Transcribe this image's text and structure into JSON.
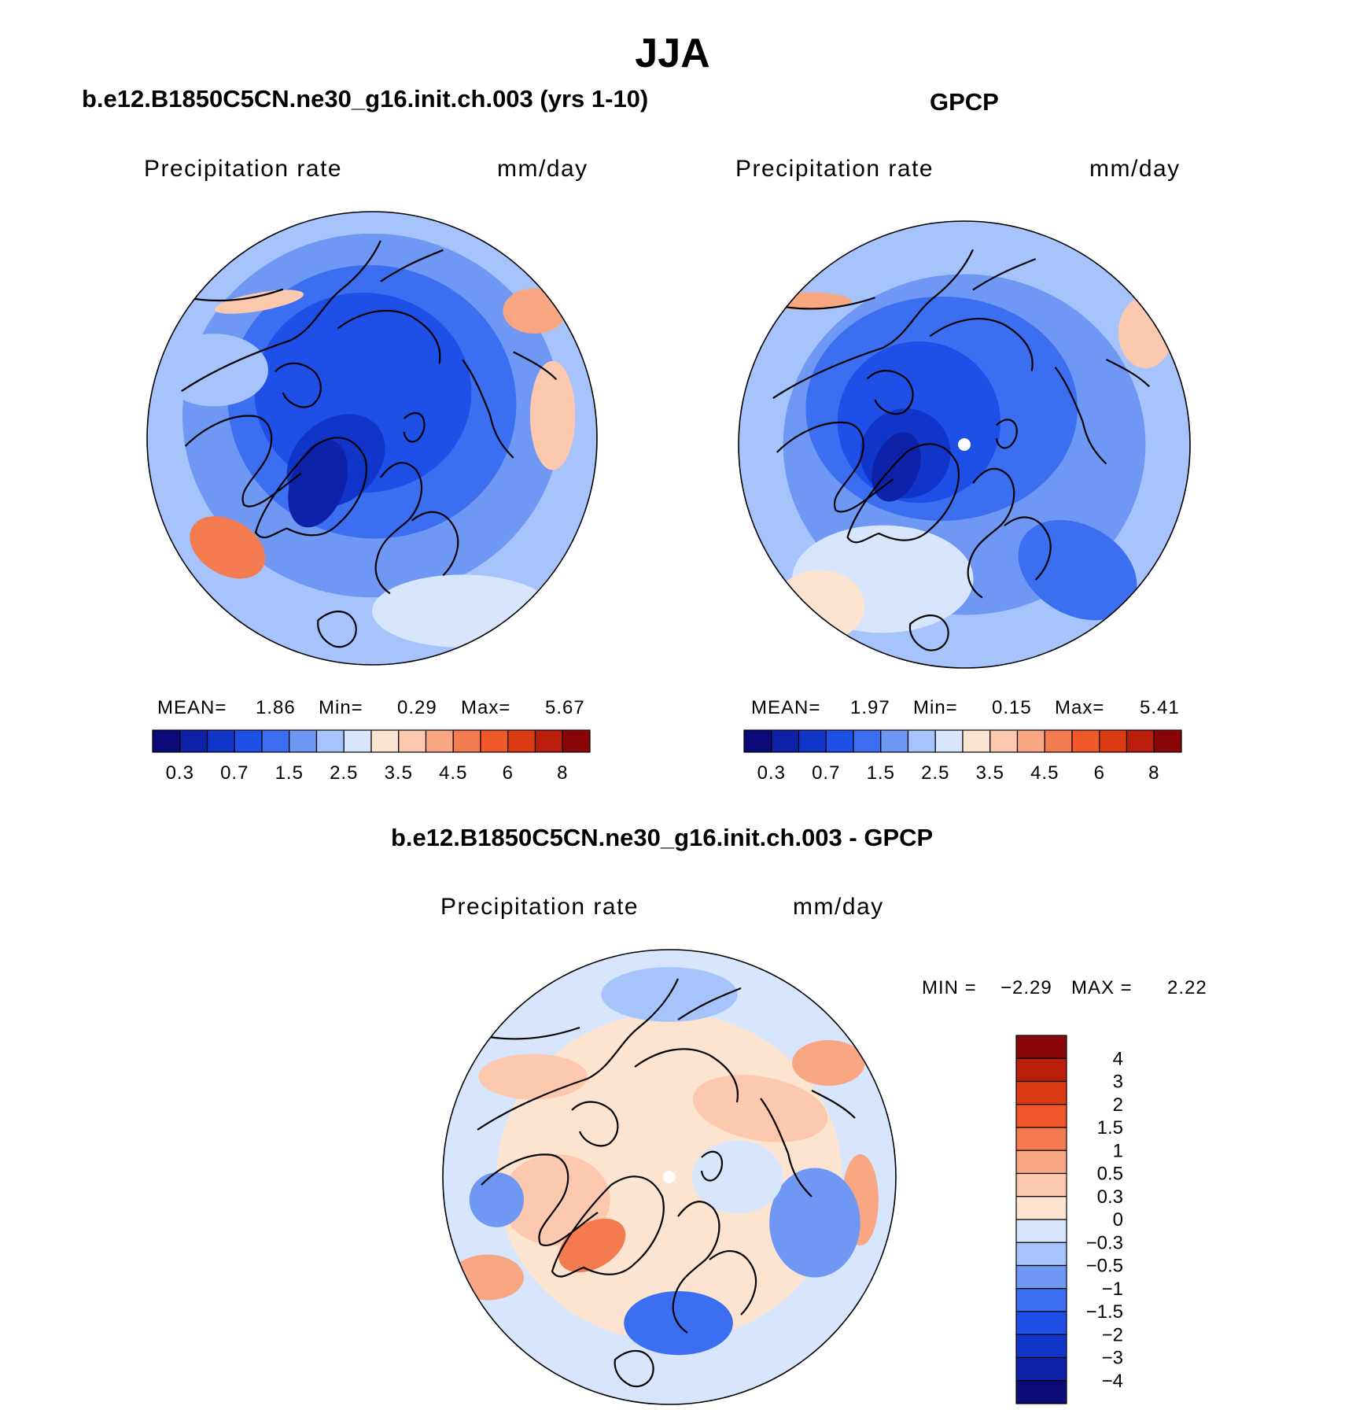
{
  "figure": {
    "title": "JJA",
    "panels": [
      {
        "title": "b.e12.B1850C5CN.ne30_g16.init.ch.003 (yrs 1-10)",
        "variable": "Precipitation rate",
        "units": "mm/day",
        "stats": {
          "mean_label": "MEAN=",
          "mean": "1.86",
          "min_label": "Min=",
          "min": "0.29",
          "max_label": "Max=",
          "max": "5.67"
        }
      },
      {
        "title": "GPCP",
        "variable": "Precipitation rate",
        "units": "mm/day",
        "stats": {
          "mean_label": "MEAN=",
          "mean": "1.97",
          "min_label": "Min=",
          "min": "0.15",
          "max_label": "Max=",
          "max": "5.41"
        }
      },
      {
        "title": "b.e12.B1850C5CN.ne30_g16.init.ch.003 - GPCP",
        "variable": "Precipitation rate",
        "units": "mm/day",
        "stats": {
          "min_label": "MIN =",
          "min": "−2.29",
          "max_label": "MAX =",
          "max": "2.22"
        }
      }
    ]
  },
  "chart_data": [
    {
      "type": "heatmap",
      "projection": "north polar stereographic",
      "title": "b.e12.B1850C5CN.ne30_g16.init.ch.003 (yrs 1-10)",
      "field": "Precipitation rate",
      "units": "mm/day",
      "mean": 1.86,
      "min": 0.29,
      "max": 5.67,
      "colorbar": {
        "orientation": "horizontal",
        "levels": [
          0.2,
          0.3,
          0.5,
          0.7,
          1,
          1.5,
          2,
          2.5,
          3,
          3.5,
          4,
          4.5,
          5,
          6,
          7,
          8
        ],
        "tick_labels": [
          "0.3",
          "0.7",
          "1.5",
          "2.5",
          "3.5",
          "4.5",
          "6",
          "8"
        ],
        "colors": [
          "#0a0a78",
          "#0d22a8",
          "#1035c8",
          "#1e4fe6",
          "#3b6ef0",
          "#6f98f5",
          "#a6c3fb",
          "#d7e6fd",
          "#fde4d0",
          "#fcc8ae",
          "#f9a682",
          "#f47b50",
          "#f0572a",
          "#db3a12",
          "#b81e0a",
          "#8a0606"
        ]
      }
    },
    {
      "type": "heatmap",
      "projection": "north polar stereographic",
      "title": "GPCP",
      "field": "Precipitation rate",
      "units": "mm/day",
      "mean": 1.97,
      "min": 0.15,
      "max": 5.41,
      "colorbar": {
        "orientation": "horizontal",
        "levels": [
          0.2,
          0.3,
          0.5,
          0.7,
          1,
          1.5,
          2,
          2.5,
          3,
          3.5,
          4,
          4.5,
          5,
          6,
          7,
          8
        ],
        "tick_labels": [
          "0.3",
          "0.7",
          "1.5",
          "2.5",
          "3.5",
          "4.5",
          "6",
          "8"
        ],
        "colors": [
          "#0a0a78",
          "#0d22a8",
          "#1035c8",
          "#1e4fe6",
          "#3b6ef0",
          "#6f98f5",
          "#a6c3fb",
          "#d7e6fd",
          "#fde4d0",
          "#fcc8ae",
          "#f9a682",
          "#f47b50",
          "#f0572a",
          "#db3a12",
          "#b81e0a",
          "#8a0606"
        ]
      }
    },
    {
      "type": "heatmap",
      "projection": "north polar stereographic",
      "title": "b.e12.B1850C5CN.ne30_g16.init.ch.003 - GPCP",
      "field": "Precipitation rate",
      "units": "mm/day",
      "min": -2.29,
      "max": 2.22,
      "colorbar": {
        "orientation": "vertical",
        "tick_labels": [
          "4",
          "3",
          "2",
          "1.5",
          "1",
          "0.5",
          "0.3",
          "0",
          "−0.3",
          "−0.5",
          "−1",
          "−1.5",
          "−2",
          "−3",
          "−4"
        ],
        "colors": [
          "#8a0606",
          "#b81e0a",
          "#db3a12",
          "#f0572a",
          "#f47b50",
          "#f9a682",
          "#fcc8ae",
          "#fde4d0",
          "#d7e6fd",
          "#a6c3fb",
          "#6f98f5",
          "#3b6ef0",
          "#1e4fe6",
          "#1035c8",
          "#0d22a8",
          "#0a0a78"
        ]
      }
    }
  ]
}
